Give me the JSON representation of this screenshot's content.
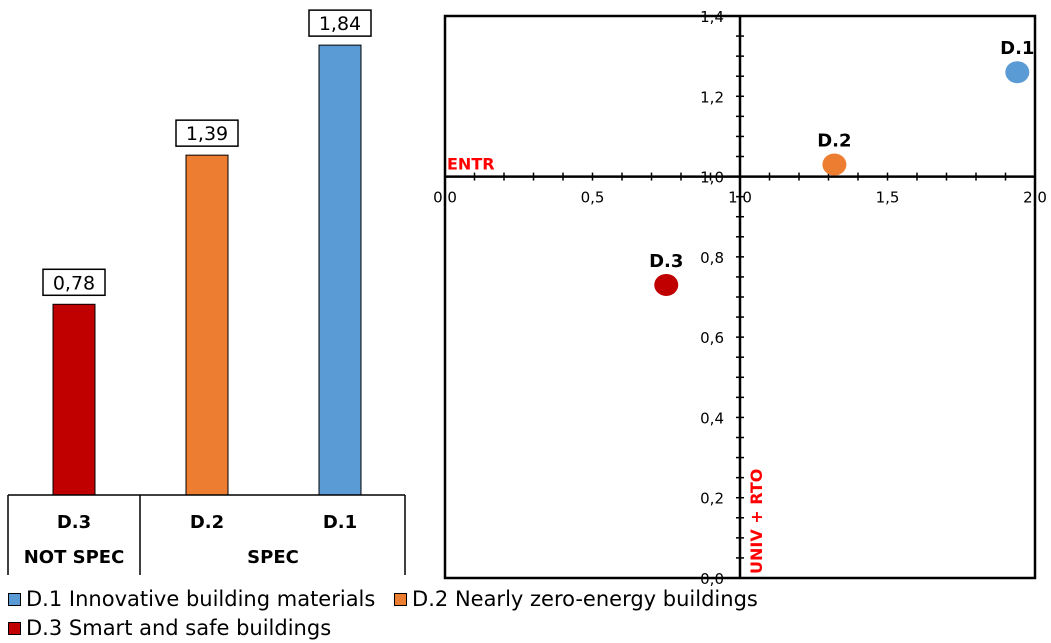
{
  "colors": {
    "d1": "#5b9bd5",
    "d2": "#ed7d31",
    "d3": "#c00000",
    "label_red": "#ff0000"
  },
  "chart_data": [
    {
      "type": "bar",
      "categories": [
        "D.3",
        "D.2",
        "D.1"
      ],
      "values": [
        0.78,
        1.39,
        1.84
      ],
      "value_labels": [
        "0,78",
        "1,39",
        "1,84"
      ],
      "ylim": [
        0,
        2.0
      ],
      "groups": [
        {
          "label": "NOT SPEC",
          "categories": [
            "D.3"
          ]
        },
        {
          "label": "SPEC",
          "categories": [
            "D.2",
            "D.1"
          ]
        }
      ],
      "grid": false
    },
    {
      "type": "scatter",
      "xlim": [
        0.0,
        2.0
      ],
      "ylim": [
        0.0,
        1.4
      ],
      "x_ticks": [
        0.0,
        0.5,
        1.0,
        1.5,
        2.0
      ],
      "x_tick_labels": [
        "0,0",
        "0,5",
        "1,0",
        "1,5",
        "2,0"
      ],
      "y_ticks": [
        0.0,
        0.2,
        0.4,
        0.6,
        0.8,
        1.0,
        1.2,
        1.4
      ],
      "y_tick_labels": [
        "0,0",
        "0,2",
        "0,4",
        "0,6",
        "0,8",
        "1,0",
        "1,2",
        "1,4"
      ],
      "axes_cross_at": [
        1.0,
        1.0
      ],
      "xlabel": "ENTR",
      "ylabel": "UNIV + RTO",
      "points": [
        {
          "label": "D.1",
          "x": 1.94,
          "y": 1.26
        },
        {
          "label": "D.2",
          "x": 1.32,
          "y": 1.03
        },
        {
          "label": "D.3",
          "x": 0.75,
          "y": 0.73
        }
      ],
      "grid": false
    }
  ],
  "legend": [
    {
      "code": "D.1",
      "text": "Innovative building materials"
    },
    {
      "code": "D.2",
      "text": "Nearly zero-energy buildings"
    },
    {
      "code": "D.3",
      "text": "Smart and safe buildings"
    }
  ]
}
